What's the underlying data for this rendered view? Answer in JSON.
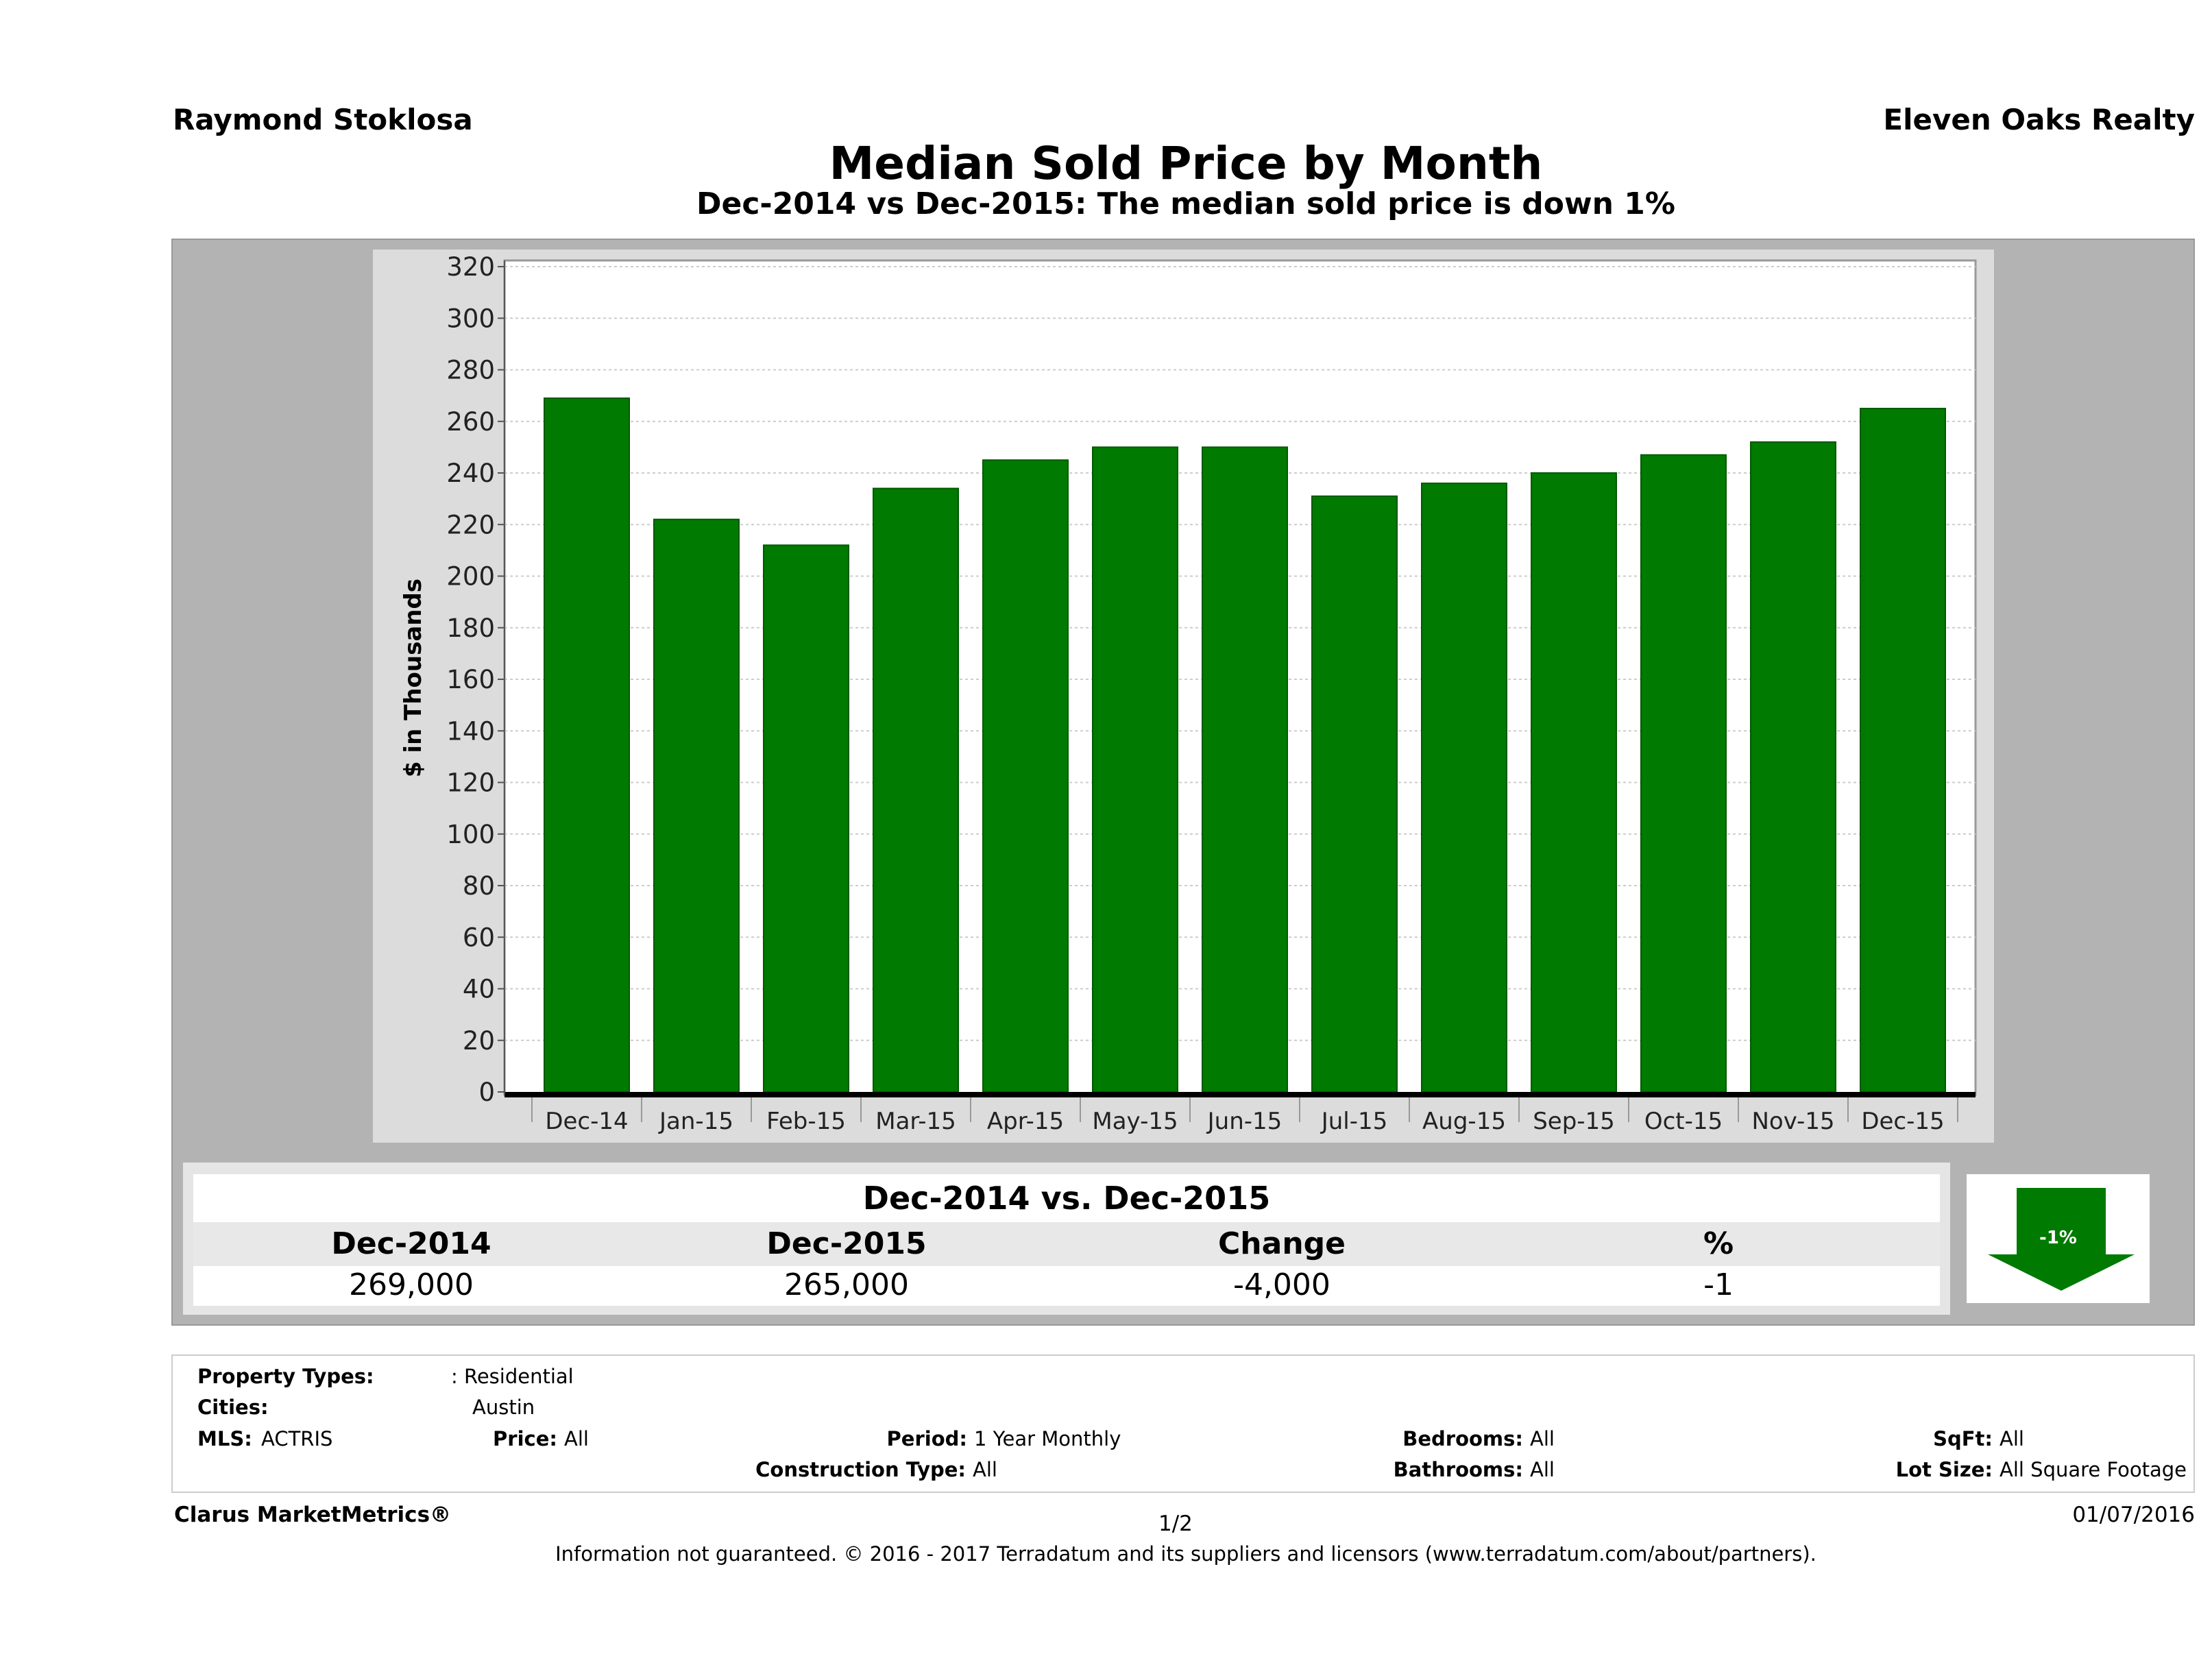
{
  "header": {
    "agent": "Raymond Stoklosa",
    "broker": "Eleven Oaks Realty"
  },
  "chart_data": {
    "type": "bar",
    "title": "Median Sold Price by Month",
    "subtitle": "Dec-2014 vs Dec-2015: The median sold price is down 1%",
    "ylabel": "$ in Thousands",
    "xlabel": "",
    "ylim": [
      0,
      320
    ],
    "yticks": [
      0,
      20,
      40,
      60,
      80,
      100,
      120,
      140,
      160,
      180,
      200,
      220,
      240,
      260,
      280,
      300,
      320
    ],
    "grid": true,
    "bar_color": "#007a00",
    "categories": [
      "Dec-14",
      "Jan-15",
      "Feb-15",
      "Mar-15",
      "Apr-15",
      "May-15",
      "Jun-15",
      "Jul-15",
      "Aug-15",
      "Sep-15",
      "Oct-15",
      "Nov-15",
      "Dec-15"
    ],
    "values": [
      269,
      222,
      212,
      234,
      245,
      250,
      250,
      231,
      236,
      240,
      247,
      252,
      265
    ]
  },
  "summary": {
    "title": "Dec-2014 vs. Dec-2015",
    "headers": [
      "Dec-2014",
      "Dec-2015",
      "Change",
      "%"
    ],
    "values": [
      "269,000",
      "265,000",
      "-4,000",
      "-1"
    ],
    "badge": "-1%",
    "badge_icon": "down-arrow-icon",
    "badge_color": "#007a00"
  },
  "criteria": {
    "property_types_label": "Property Types:",
    "property_types": ": Residential",
    "cities_label": "Cities:",
    "cities": "Austin",
    "mls_label": "MLS:",
    "mls": "ACTRIS",
    "price_label": "Price:",
    "price": "All",
    "period_label": "Period:",
    "period": "1 Year Monthly",
    "construction_label": "Construction Type:",
    "construction": "All",
    "bedrooms_label": "Bedrooms:",
    "bedrooms": "All",
    "bathrooms_label": "Bathrooms:",
    "bathrooms": "All",
    "sqft_label": "SqFt:",
    "sqft": "All",
    "lot_label": "Lot Size:",
    "lot": "All Square Footage"
  },
  "footer": {
    "brand": "Clarus MarketMetrics®",
    "page": "1/2",
    "date": "01/07/2016",
    "disclaimer": "Information not guaranteed. © 2016 - 2017 Terradatum and its suppliers and licensors (www.terradatum.com/about/partners)."
  }
}
